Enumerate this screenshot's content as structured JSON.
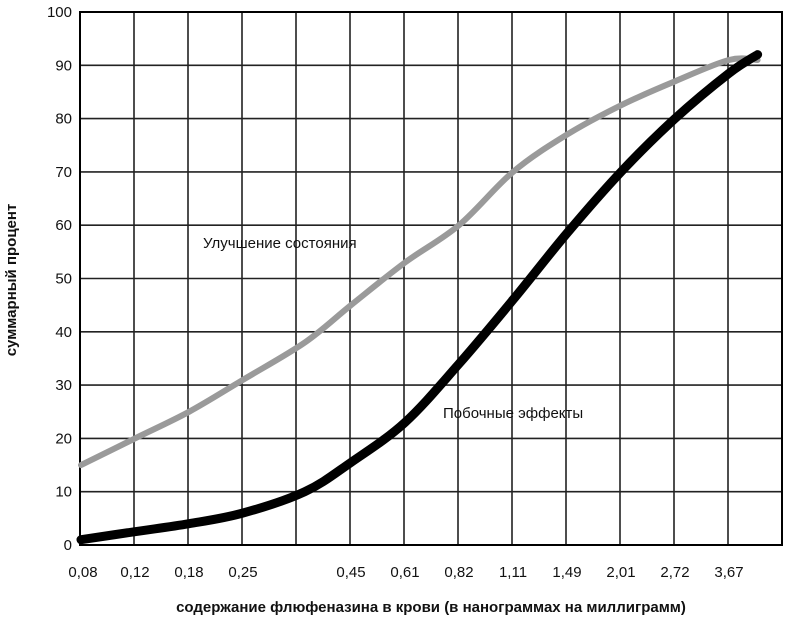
{
  "chart_data": {
    "type": "line",
    "title": "",
    "xlabel": "содержание флюфеназина в крови (в нанограммах на миллиграмм)",
    "ylabel": "суммарный процент",
    "x_tick_labels": [
      "0,08",
      "0,12",
      "0,18",
      "0,25",
      "0,45",
      "0,61",
      "0,82",
      "1,11",
      "1,49",
      "2,01",
      "2,72",
      "3,67"
    ],
    "y_tick_labels": [
      "0",
      "10",
      "20",
      "30",
      "40",
      "50",
      "60",
      "70",
      "80",
      "90",
      "100"
    ],
    "ylim": [
      0,
      100
    ],
    "grid": true,
    "series": [
      {
        "name": "Улучшение состояния",
        "color": "#9a9a9a",
        "x": [
          0.08,
          0.12,
          0.18,
          0.25,
          0.35,
          0.45,
          0.61,
          0.82,
          1.11,
          1.49,
          2.01,
          2.72,
          3.67,
          4.3
        ],
        "y": [
          15,
          20,
          25,
          31,
          38,
          45,
          53,
          60,
          70,
          77,
          82.5,
          87,
          91,
          91
        ]
      },
      {
        "name": "Побочные эффекты",
        "color": "#000000",
        "x": [
          0.08,
          0.12,
          0.18,
          0.25,
          0.35,
          0.45,
          0.61,
          0.82,
          1.11,
          1.49,
          2.01,
          2.72,
          3.67,
          4.3
        ],
        "y": [
          1,
          2.5,
          4,
          6,
          10,
          15.5,
          23,
          34,
          46,
          58.5,
          70,
          80,
          88.5,
          92
        ]
      }
    ]
  }
}
